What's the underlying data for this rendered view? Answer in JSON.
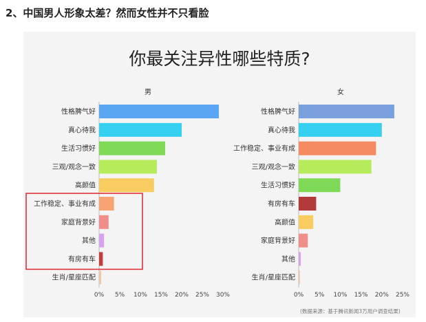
{
  "heading": "2、中国男人形象太差？然而女性并不只看脸",
  "title": "你最关注异性哪些特质?",
  "source": "(数据来源：基于腾讯新闻3万用户调查结果)",
  "chart_data": [
    {
      "type": "bar",
      "orientation": "horizontal",
      "title": "男",
      "categories": [
        "性格脾气好",
        "真心待我",
        "生活习惯好",
        "三观/观念一致",
        "高颜值",
        "工作稳定、事业有成",
        "家庭背景好",
        "其他",
        "有房有车",
        "生肖/星座匹配"
      ],
      "values": [
        29,
        20,
        16,
        14,
        13.3,
        3.6,
        2.3,
        1.2,
        0.9,
        0.5
      ],
      "colors": [
        "#5aa6f2",
        "#35d0f0",
        "#7ed957",
        "#b6ec5c",
        "#f9cc62",
        "#f7a373",
        "#f08f8a",
        "#d9a2f0",
        "#c43d3d",
        "#f0c8a8"
      ],
      "xlim": [
        0,
        30
      ],
      "xticks": [
        "0%",
        "5%",
        "10%",
        "15%",
        "20%",
        "25%",
        "30%"
      ],
      "highlight_box_categories": [
        "工作稳定、事业有成",
        "家庭背景好",
        "其他",
        "有房有车"
      ]
    },
    {
      "type": "bar",
      "orientation": "horizontal",
      "title": "女",
      "categories": [
        "性格脾气好",
        "真心待我",
        "工作稳定、事业有成",
        "三观/观念一致",
        "生活习惯好",
        "有房有车",
        "高颜值",
        "家庭背景好",
        "其他",
        "生肖/星座匹配"
      ],
      "values": [
        23,
        20,
        18.6,
        17.5,
        10,
        4.2,
        3.5,
        2.2,
        0.5,
        0.3
      ],
      "colors": [
        "#7aa0de",
        "#35d0f0",
        "#f58a60",
        "#b6ec5c",
        "#7ed957",
        "#b23a3a",
        "#f9cc62",
        "#f08f8a",
        "#d9a2f0",
        "#f0c8a8"
      ],
      "xlim": [
        0,
        25
      ],
      "xticks": [
        "0%",
        "5%",
        "10%",
        "15%",
        "20%",
        "25%"
      ]
    }
  ]
}
